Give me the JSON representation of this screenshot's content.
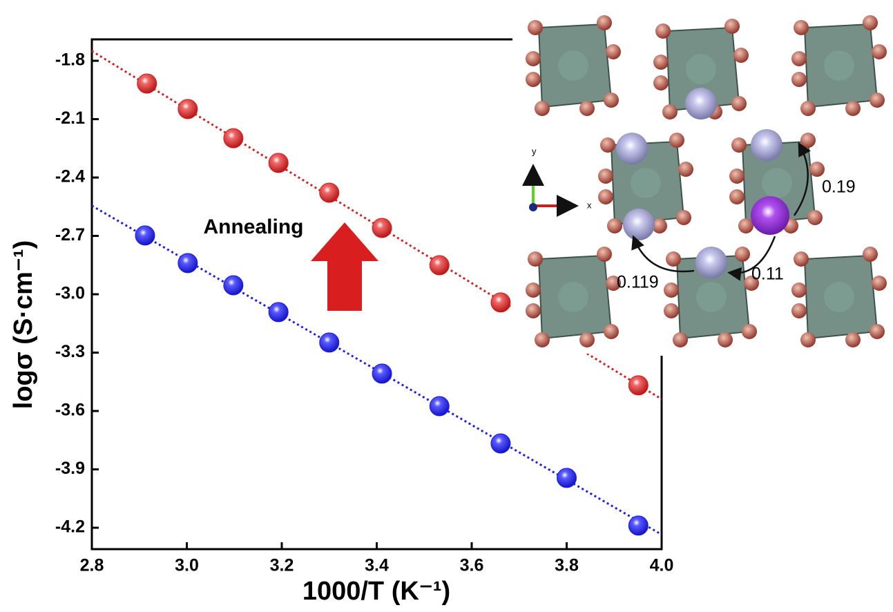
{
  "chart_data": {
    "type": "scatter",
    "xlabel": "1000/T (K⁻¹)",
    "ylabel": "logσ (S·cm⁻¹)",
    "annotation": "Annealing",
    "xlim": [
      2.8,
      4.0
    ],
    "ylim": [
      -4.31,
      -1.69
    ],
    "xticks": [
      2.8,
      {
        "value": 3.0,
        "label": "3.0"
      },
      3.2,
      3.4,
      3.6,
      3.8,
      {
        "value": 4.0,
        "label": "4.0"
      }
    ],
    "yticks": [
      -1.8,
      -2.1,
      -2.4,
      -2.7,
      {
        "value": -3.0,
        "label": "-3.0"
      },
      -3.3,
      -3.6,
      -3.9,
      -4.2
    ],
    "series": [
      {
        "color": "#d81e1e",
        "x": [
          2.916,
          3.002,
          3.098,
          3.193,
          3.3,
          3.411,
          3.532,
          3.661,
          3.951
        ],
        "values": [
          -1.917,
          -2.048,
          -2.198,
          -2.325,
          -2.478,
          -2.659,
          -2.851,
          -3.042,
          -3.468
        ],
        "fit_x": [
          2.8,
          4.0
        ],
        "fit_values": [
          -1.75,
          -3.539
        ]
      },
      {
        "color": "#1e1ee6",
        "x": [
          2.912,
          3.002,
          3.098,
          3.193,
          3.3,
          3.411,
          3.532,
          3.661,
          3.8,
          3.951
        ],
        "values": [
          -2.698,
          -2.84,
          -2.954,
          -3.092,
          -3.248,
          -3.408,
          -3.575,
          -3.767,
          -3.944,
          -4.189
        ],
        "fit_x": [
          2.8,
          4.0
        ],
        "fit_values": [
          -2.545,
          -4.235
        ]
      }
    ]
  },
  "inset": {
    "axis_y": "y",
    "axis_x": "x",
    "hop_1": "0.19",
    "hop_2": "0.11",
    "hop_3": "0.119"
  }
}
